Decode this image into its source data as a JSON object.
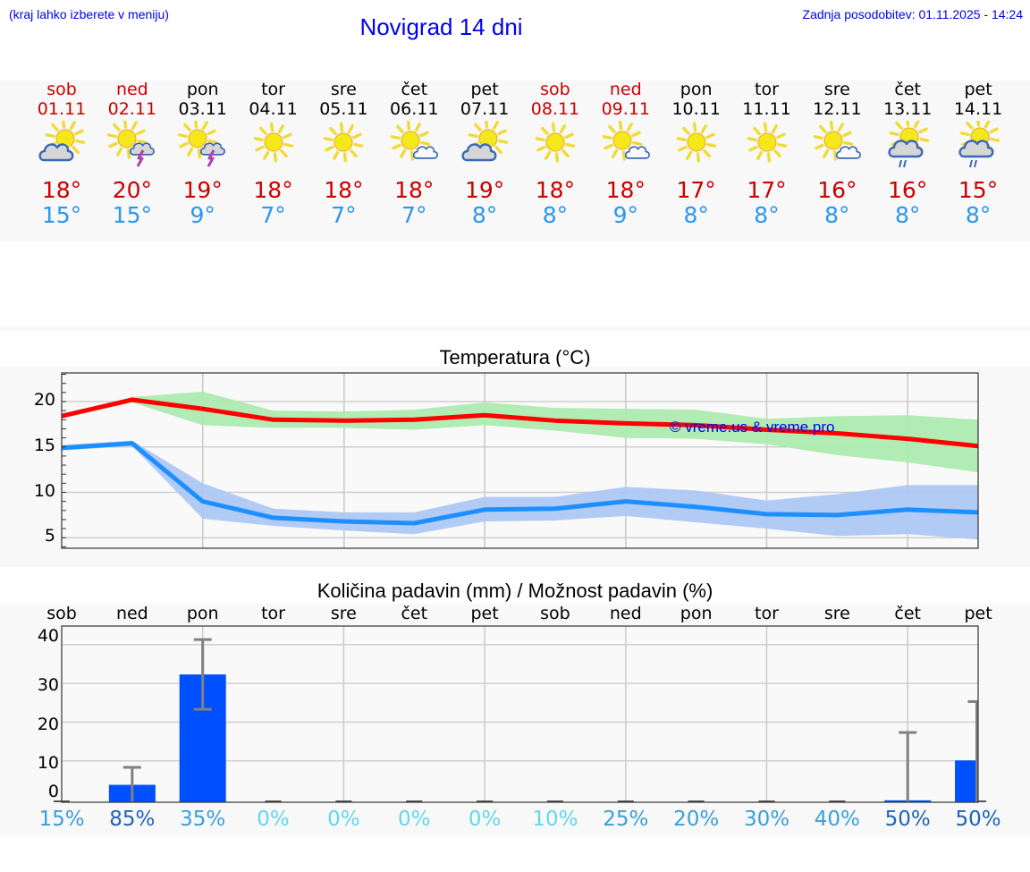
{
  "header": {
    "note": "(kraj lahko izberete v meniju)",
    "title": "Novigrad 14 dni",
    "last_update": "Zadnja posodobitev: 01.11.2025 - 14:24"
  },
  "colors": {
    "weekend_text": "#cc0000",
    "weekday_text": "#000000",
    "tmax_text": "#cc0000",
    "tmin_text": "#2a96f0",
    "max_line": "#ff0000",
    "max_band": "#acebaf",
    "min_line": "#1e8fff",
    "min_band": "#adc8f3",
    "bar": "#0050ff",
    "errbar": "#808080"
  },
  "days": [
    {
      "name": "sob",
      "date": "01.11",
      "weekend": true,
      "icon": "sun-cloud-icon",
      "tmax": "18°",
      "tmin": "15°"
    },
    {
      "name": "ned",
      "date": "02.11",
      "weekend": true,
      "icon": "sun-thunderstorm-icon",
      "tmax": "20°",
      "tmin": "15°"
    },
    {
      "name": "pon",
      "date": "03.11",
      "weekend": false,
      "icon": "sun-thunderstorm-icon",
      "tmax": "19°",
      "tmin": "9°"
    },
    {
      "name": "tor",
      "date": "04.11",
      "weekend": false,
      "icon": "sun-icon",
      "tmax": "18°",
      "tmin": "7°"
    },
    {
      "name": "sre",
      "date": "05.11",
      "weekend": false,
      "icon": "sun-icon",
      "tmax": "18°",
      "tmin": "7°"
    },
    {
      "name": "čet",
      "date": "06.11",
      "weekend": false,
      "icon": "sun-small-cloud-icon",
      "tmax": "18°",
      "tmin": "7°"
    },
    {
      "name": "pet",
      "date": "07.11",
      "weekend": false,
      "icon": "sun-cloud-icon",
      "tmax": "19°",
      "tmin": "8°"
    },
    {
      "name": "sob",
      "date": "08.11",
      "weekend": true,
      "icon": "sun-icon",
      "tmax": "18°",
      "tmin": "8°"
    },
    {
      "name": "ned",
      "date": "09.11",
      "weekend": true,
      "icon": "sun-small-cloud-icon",
      "tmax": "18°",
      "tmin": "9°"
    },
    {
      "name": "pon",
      "date": "10.11",
      "weekend": false,
      "icon": "sun-icon",
      "tmax": "17°",
      "tmin": "8°"
    },
    {
      "name": "tor",
      "date": "11.11",
      "weekend": false,
      "icon": "sun-icon",
      "tmax": "17°",
      "tmin": "8°"
    },
    {
      "name": "sre",
      "date": "12.11",
      "weekend": false,
      "icon": "sun-small-cloud-icon",
      "tmax": "16°",
      "tmin": "8°"
    },
    {
      "name": "čet",
      "date": "13.11",
      "weekend": false,
      "icon": "sun-cloud-rain-icon",
      "tmax": "16°",
      "tmin": "8°"
    },
    {
      "name": "pet",
      "date": "14.11",
      "weekend": false,
      "icon": "sun-cloud-rain-icon",
      "tmax": "15°",
      "tmin": "8°"
    }
  ],
  "temperature_chart": {
    "title": "Temperatura (°C)",
    "watermark": "© vreme.us & vreme.pro",
    "y_ticks": [
      "20",
      "15",
      "10",
      "5"
    ]
  },
  "precip_chart": {
    "title": "Količina padavin (mm) / Možnost padavin (%)",
    "x_labels": [
      "sob",
      "ned",
      "pon",
      "tor",
      "sre",
      "čet",
      "pet",
      "sob",
      "ned",
      "pon",
      "tor",
      "sre",
      "čet",
      "pet"
    ],
    "y_ticks": [
      "40",
      "30",
      "20",
      "10",
      "0"
    ],
    "probabilities": [
      "15%",
      "85%",
      "35%",
      "0%",
      "0%",
      "0%",
      "0%",
      "10%",
      "25%",
      "20%",
      "30%",
      "40%",
      "50%",
      "50%"
    ],
    "prob_colors": [
      "#3a9fd6",
      "#1f63b8",
      "#3a9fd6",
      "#62d8e8",
      "#62d8e8",
      "#62d8e8",
      "#62d8e8",
      "#62d8e8",
      "#3a9fd6",
      "#3a9fd6",
      "#3a9fd6",
      "#3a9fd6",
      "#1f63b8",
      "#1f63b8"
    ]
  },
  "chart_data": [
    {
      "type": "line",
      "title": "Temperatura (°C)",
      "xlabel": "",
      "ylabel": "°C",
      "ylim": [
        3.8,
        23.2
      ],
      "grid": true,
      "categories": [
        "01.11",
        "02.11",
        "03.11",
        "04.11",
        "05.11",
        "06.11",
        "07.11",
        "08.11",
        "09.11",
        "10.11",
        "11.11",
        "12.11",
        "13.11",
        "14.11"
      ],
      "series": [
        {
          "name": "Max temperature",
          "color": "#ff0000",
          "values": [
            18.4,
            20.2,
            19.2,
            18.0,
            17.9,
            18.0,
            18.5,
            17.9,
            17.6,
            17.4,
            16.9,
            16.5,
            15.9,
            15.1
          ]
        },
        {
          "name": "Max range low",
          "values": [
            18.2,
            19.9,
            17.4,
            17.1,
            17.1,
            16.9,
            17.4,
            16.8,
            16.0,
            15.9,
            15.3,
            14.1,
            13.3,
            12.2
          ]
        },
        {
          "name": "Max range high",
          "values": [
            18.6,
            20.5,
            21.1,
            19.0,
            18.9,
            19.1,
            19.9,
            19.3,
            19.2,
            19.1,
            18.1,
            18.4,
            18.5,
            18.0
          ]
        },
        {
          "name": "Min temperature",
          "color": "#1e8fff",
          "values": [
            14.9,
            15.4,
            9.0,
            7.2,
            6.8,
            6.6,
            8.1,
            8.2,
            9.0,
            8.4,
            7.6,
            7.5,
            8.1,
            7.8
          ]
        },
        {
          "name": "Min range low",
          "values": [
            14.6,
            15.1,
            7.1,
            6.3,
            5.8,
            5.4,
            6.8,
            6.9,
            7.4,
            6.7,
            6.0,
            5.2,
            5.4,
            4.8
          ]
        },
        {
          "name": "Min range high",
          "values": [
            15.2,
            15.7,
            11.0,
            8.2,
            7.8,
            7.8,
            9.5,
            9.5,
            10.6,
            10.2,
            9.1,
            9.8,
            10.8,
            10.8
          ]
        }
      ],
      "annotations": [
        "© vreme.us & vreme.pro"
      ]
    },
    {
      "type": "bar",
      "title": "Količina padavin (mm) / Možnost padavin (%)",
      "xlabel": "",
      "ylabel": "mm",
      "ylim": [
        0,
        42
      ],
      "grid": true,
      "categories": [
        "sob",
        "ned",
        "pon",
        "tor",
        "sre",
        "čet",
        "pet",
        "sob",
        "ned",
        "pon",
        "tor",
        "sre",
        "čet",
        "pet"
      ],
      "series": [
        {
          "name": "Precipitation (mm)",
          "color": "#0050ff",
          "values": [
            0,
            4.5,
            33,
            0,
            0,
            0,
            0,
            0,
            0,
            0,
            0,
            0,
            0.5,
            10.8
          ]
        },
        {
          "name": "Precipitation range high (mm)",
          "values": [
            0,
            9,
            42,
            0,
            0,
            0,
            0,
            0,
            0,
            0,
            0,
            0,
            18,
            26
          ]
        },
        {
          "name": "Precipitation range low (mm)",
          "values": [
            0,
            0,
            24,
            0,
            0,
            0,
            0,
            0,
            0,
            0,
            0,
            0,
            0,
            0
          ]
        },
        {
          "name": "Probability (%)",
          "values": [
            15,
            85,
            35,
            0,
            0,
            0,
            0,
            10,
            25,
            20,
            30,
            40,
            50,
            50
          ]
        }
      ]
    }
  ]
}
